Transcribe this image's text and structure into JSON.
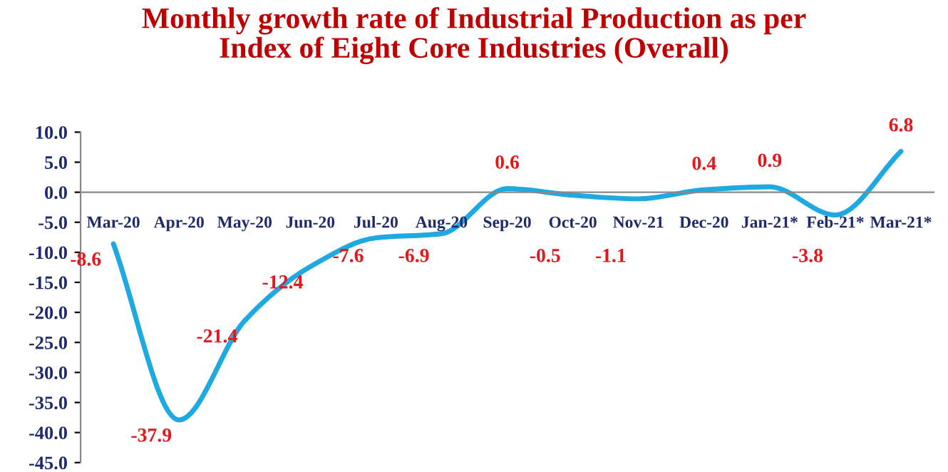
{
  "chart_data": {
    "type": "line",
    "title": "Monthly growth rate of Industrial Production as per\nIndex of Eight Core Industries (Overall)",
    "categories": [
      "Mar-20",
      "Apr-20",
      "May-20",
      "Jun-20",
      "Jul-20",
      "Aug-20",
      "Sep-20",
      "Oct-20",
      "Nov-21",
      "Dec-20",
      "Jan-21*",
      "Feb-21*",
      "Mar-21*"
    ],
    "series": [
      {
        "color": "#1fa9e1",
        "values": [
          -8.6,
          -37.9,
          -21.4,
          -12.4,
          -7.6,
          -6.9,
          0.6,
          -0.5,
          -1.1,
          0.4,
          0.9,
          -3.8,
          6.8
        ]
      }
    ],
    "ylim": [
      -45,
      10
    ],
    "yticks": [
      {
        "value": 10,
        "label": "10.0"
      },
      {
        "value": 5,
        "label": "5.0"
      },
      {
        "value": 0,
        "label": "0.0"
      },
      {
        "value": -5,
        "label": "-5.0"
      },
      {
        "value": -10,
        "label": "-10.0"
      },
      {
        "value": -15,
        "label": "-15.0"
      },
      {
        "value": -20,
        "label": "-20.0"
      },
      {
        "value": -25,
        "label": "-25.0"
      },
      {
        "value": -30,
        "label": "-30.0"
      },
      {
        "value": -35,
        "label": "-35.0"
      },
      {
        "value": -40,
        "label": "-40.0"
      },
      {
        "value": -45,
        "label": "-45.0"
      }
    ],
    "data_labels": true,
    "grid": false,
    "legend": false,
    "marker": "none",
    "line_style": "solid"
  }
}
